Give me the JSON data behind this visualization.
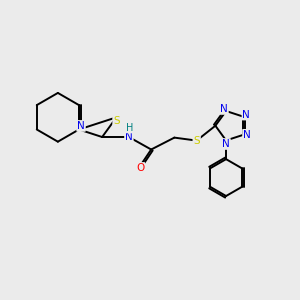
{
  "background_color": "#ebebeb",
  "bond_color": "#000000",
  "atom_colors": {
    "N": "#0000ee",
    "S": "#cccc00",
    "O": "#ff0000",
    "H": "#008080",
    "C": "#000000"
  },
  "figsize": [
    3.0,
    3.0
  ],
  "dpi": 100,
  "lw": 1.4
}
